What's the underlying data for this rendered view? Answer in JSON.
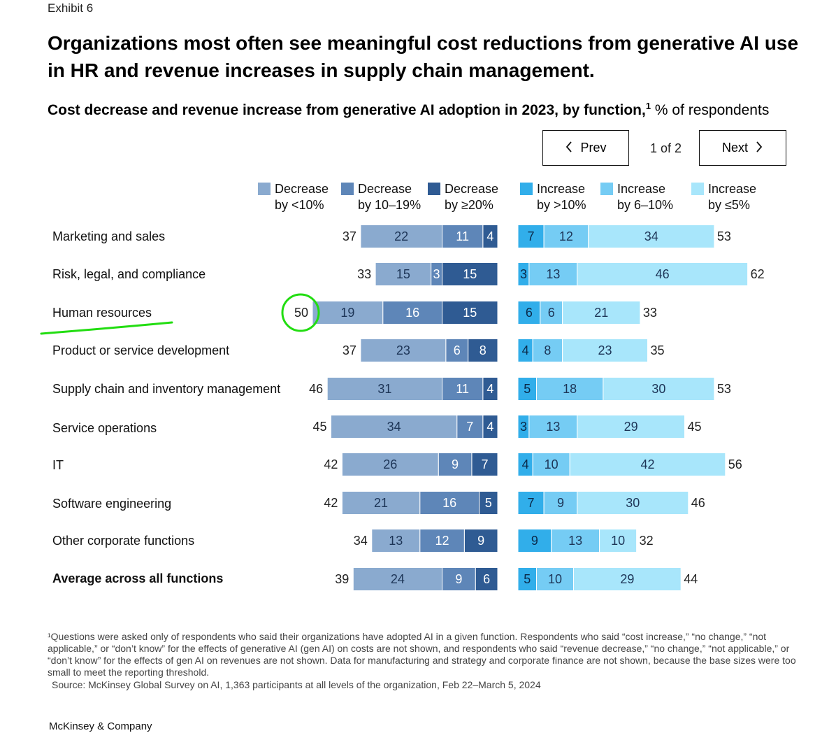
{
  "exhibit": "Exhibit 6",
  "title": "Organizations most often see meaningful cost reductions from generative AI use in HR and revenue increases in supply chain management.",
  "subtitle_bold": "Cost decrease and revenue increase from generative AI adoption in 2023, by function,",
  "subtitle_sup": "1",
  "subtitle_rest": " % of respondents",
  "pager": {
    "prev_label": "Prev",
    "next_label": "Next",
    "page_text": "1 of 2",
    "prev_icon": "chevron-left-icon",
    "next_icon": "chevron-right-icon"
  },
  "legend": [
    {
      "l1": "Decrease",
      "l2": "by <10%",
      "color": "#8AAACF"
    },
    {
      "l1": "Decrease",
      "l2": "by 10–19%",
      "color": "#5E86B8"
    },
    {
      "l1": "Decrease",
      "l2": "by ≥20%",
      "color": "#2F5B93"
    },
    {
      "l1": "Increase",
      "l2": "by >10%",
      "color": "#31AEEA"
    },
    {
      "l1": "Increase",
      "l2": "by 6–10%",
      "color": "#75CCF4"
    },
    {
      "l1": "Increase",
      "l2": "by ≤5%",
      "color": "#A8E6FB"
    }
  ],
  "chart_data": {
    "type": "bar",
    "categories": [
      "Marketing and sales",
      "Risk, legal, and compliance",
      "Human resources",
      "Product or service development",
      "Supply chain and inventory management",
      "Service operations",
      "IT",
      "Software engineering",
      "Other corporate functions",
      "Average across all functions"
    ],
    "decrease_series": [
      {
        "name": "Decrease by <10%",
        "values": [
          22,
          15,
          19,
          23,
          31,
          34,
          26,
          21,
          13,
          24
        ]
      },
      {
        "name": "Decrease by 10–19%",
        "values": [
          11,
          3,
          16,
          6,
          11,
          7,
          9,
          16,
          12,
          9
        ]
      },
      {
        "name": "Decrease by ≥20%",
        "values": [
          4,
          15,
          15,
          8,
          4,
          4,
          7,
          5,
          9,
          6
        ]
      }
    ],
    "decrease_totals": [
      37,
      33,
      50,
      37,
      46,
      45,
      42,
      42,
      34,
      39
    ],
    "increase_series": [
      {
        "name": "Increase by >10%",
        "values": [
          7,
          3,
          6,
          4,
          5,
          3,
          4,
          7,
          9,
          5
        ]
      },
      {
        "name": "Increase by 6–10%",
        "values": [
          12,
          13,
          6,
          8,
          18,
          13,
          10,
          9,
          13,
          10
        ]
      },
      {
        "name": "Increase by ≤5%",
        "values": [
          34,
          46,
          21,
          23,
          30,
          29,
          42,
          30,
          10,
          29
        ]
      }
    ],
    "increase_totals": [
      53,
      62,
      33,
      35,
      53,
      45,
      56,
      46,
      32,
      44
    ],
    "bold_category": "Average across all functions",
    "annotations": {
      "circled_value": "50",
      "circled_category": "Human resources",
      "underlined_category": "Human resources",
      "annotation_color": "#22DD11"
    }
  },
  "footnote": "¹Questions were asked only of respondents who said their organizations have adopted AI in a given function. Respondents who said “cost increase,” “no change,” “not applicable,” or “don’t know” for the effects of generative AI (gen AI) on costs are not shown, and respondents who said “revenue decrease,” “no change,” “not applicable,” or “don’t know” for the effects of gen AI on revenues are not shown. Data for manufacturing and strategy and corporate finance are not shown, because the base sizes were too small to meet the reporting threshold.",
  "source": "Source: McKinsey Global Survey on AI, 1,363 participants at all levels of the organization, Feb 22–March 5, 2024",
  "brand": "McKinsey & Company"
}
